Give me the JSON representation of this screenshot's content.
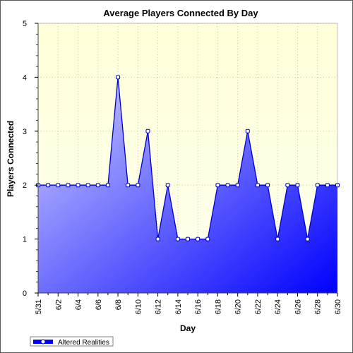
{
  "chart_data": {
    "type": "area",
    "title": "Average Players Connected By Day",
    "xlabel": "Day",
    "ylabel": "Players Connected",
    "ylim": [
      0,
      5
    ],
    "yticks": [
      0,
      1,
      2,
      3,
      4,
      5
    ],
    "grid": true,
    "legend_position": "bottom-left",
    "x": [
      "5/31",
      "6/1",
      "6/2",
      "6/3",
      "6/4",
      "6/5",
      "6/6",
      "6/7",
      "6/8",
      "6/9",
      "6/10",
      "6/11",
      "6/12",
      "6/13",
      "6/14",
      "6/15",
      "6/16",
      "6/17",
      "6/18",
      "6/19",
      "6/20",
      "6/21",
      "6/22",
      "6/23",
      "6/24",
      "6/25",
      "6/26",
      "6/27",
      "6/28",
      "6/29",
      "6/30"
    ],
    "x_tick_labels": [
      "5/31",
      "6/2",
      "6/4",
      "6/6",
      "6/8",
      "6/10",
      "6/12",
      "6/14",
      "6/16",
      "6/18",
      "6/20",
      "6/22",
      "6/24",
      "6/26",
      "6/28",
      "6/30"
    ],
    "series": [
      {
        "name": "Altered Realities",
        "values": [
          2,
          2,
          2,
          2,
          2,
          2,
          2,
          2,
          4,
          2,
          2,
          3,
          1,
          2,
          1,
          1,
          1,
          1,
          2,
          2,
          2,
          3,
          2,
          2,
          1,
          2,
          2,
          1,
          2,
          2,
          2
        ],
        "color": "#0000ff"
      }
    ],
    "colors": {
      "plot_bg_top": "#ffffd9",
      "plot_bg_bottom": "#ffffee",
      "area_light": "#c8c8ff",
      "area_dark": "#0000ff",
      "line": "#0000cc",
      "grid": "#c8c8a0"
    }
  }
}
